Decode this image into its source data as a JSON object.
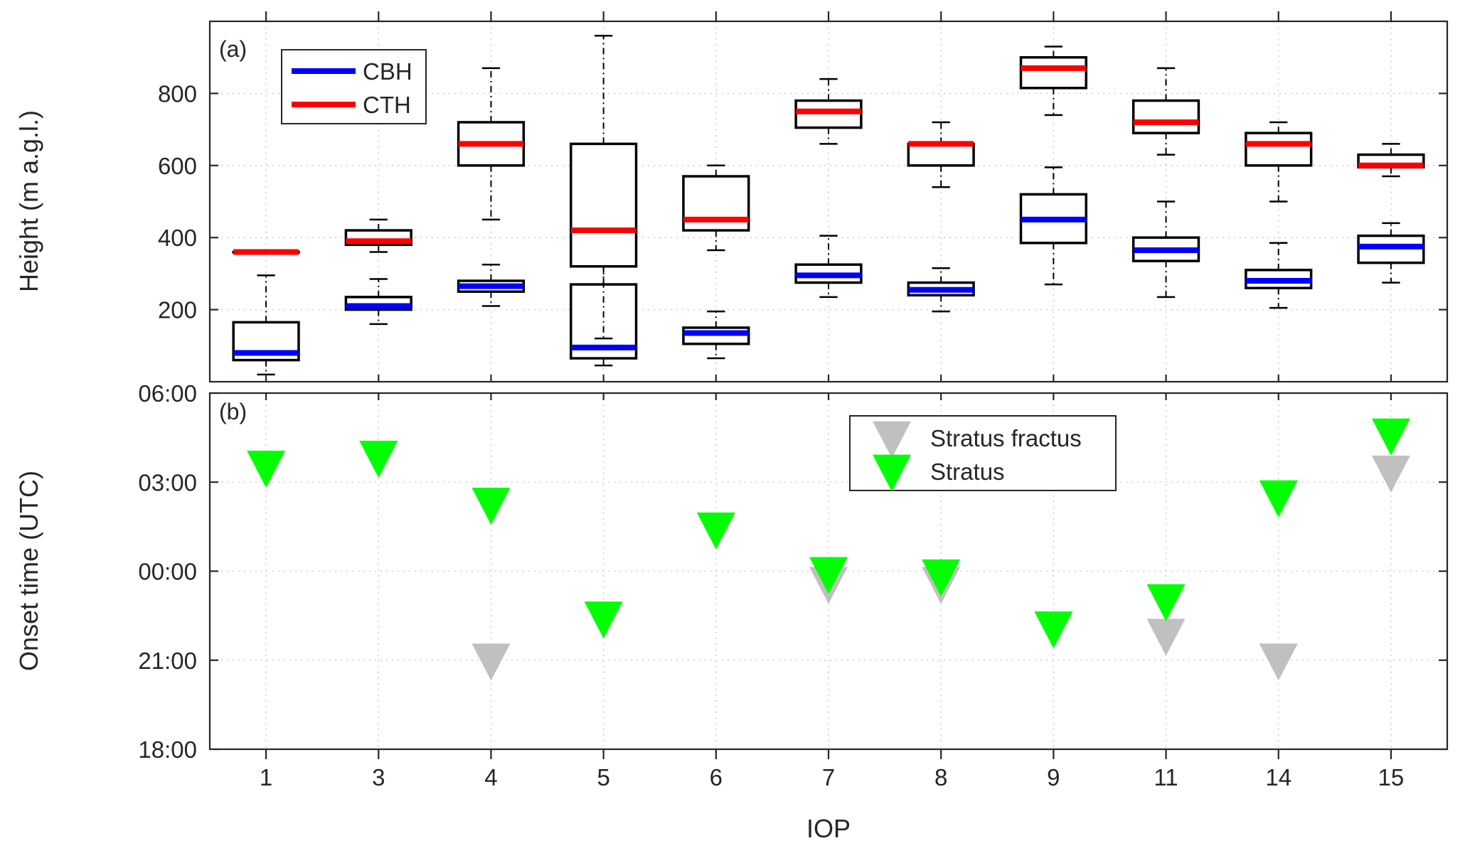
{
  "chart_data": [
    {
      "type": "box",
      "panel_label": "(a)",
      "ylabel": "Height (m a.g.l.)",
      "xlabel": "",
      "categories": [
        "1",
        "3",
        "4",
        "5",
        "6",
        "7",
        "8",
        "9",
        "11",
        "14",
        "15"
      ],
      "ylim": [
        0,
        1000
      ],
      "yticks": [
        200,
        400,
        600,
        800
      ],
      "grid": true,
      "legend": {
        "position": "top-left",
        "entries": [
          "CBH",
          "CTH"
        ]
      },
      "series": [
        {
          "name": "CBH",
          "color": "#0000ff",
          "boxes": [
            {
              "lower_whisker": 20,
              "q1": 60,
              "median": 80,
              "q3": 165,
              "upper_whisker": 295
            },
            {
              "lower_whisker": 160,
              "q1": 200,
              "median": 210,
              "q3": 235,
              "upper_whisker": 285
            },
            {
              "lower_whisker": 210,
              "q1": 250,
              "median": 265,
              "q3": 280,
              "upper_whisker": 325
            },
            {
              "lower_whisker": 45,
              "q1": 65,
              "median": 95,
              "q3": 270,
              "upper_whisker": 550
            },
            {
              "lower_whisker": 65,
              "q1": 105,
              "median": 135,
              "q3": 150,
              "upper_whisker": 195
            },
            {
              "lower_whisker": 235,
              "q1": 275,
              "median": 295,
              "q3": 325,
              "upper_whisker": 405
            },
            {
              "lower_whisker": 195,
              "q1": 240,
              "median": 255,
              "q3": 275,
              "upper_whisker": 315
            },
            {
              "lower_whisker": 270,
              "q1": 385,
              "median": 450,
              "q3": 520,
              "upper_whisker": 595
            },
            {
              "lower_whisker": 235,
              "q1": 335,
              "median": 365,
              "q3": 400,
              "upper_whisker": 500
            },
            {
              "lower_whisker": 205,
              "q1": 260,
              "median": 280,
              "q3": 310,
              "upper_whisker": 385
            },
            {
              "lower_whisker": 275,
              "q1": 330,
              "median": 375,
              "q3": 405,
              "upper_whisker": 440
            }
          ]
        },
        {
          "name": "CTH",
          "color": "#ff0000",
          "boxes": [
            {
              "lower_whisker": 360,
              "q1": 360,
              "median": 360,
              "q3": 360,
              "upper_whisker": 360
            },
            {
              "lower_whisker": 360,
              "q1": 380,
              "median": 390,
              "q3": 420,
              "upper_whisker": 450
            },
            {
              "lower_whisker": 450,
              "q1": 600,
              "median": 660,
              "q3": 720,
              "upper_whisker": 870
            },
            {
              "lower_whisker": 120,
              "q1": 320,
              "median": 420,
              "q3": 660,
              "upper_whisker": 960
            },
            {
              "lower_whisker": 365,
              "q1": 420,
              "median": 450,
              "q3": 570,
              "upper_whisker": 600
            },
            {
              "lower_whisker": 660,
              "q1": 705,
              "median": 750,
              "q3": 780,
              "upper_whisker": 840
            },
            {
              "lower_whisker": 540,
              "q1": 600,
              "median": 660,
              "q3": 660,
              "upper_whisker": 720
            },
            {
              "lower_whisker": 740,
              "q1": 815,
              "median": 870,
              "q3": 900,
              "upper_whisker": 930
            },
            {
              "lower_whisker": 630,
              "q1": 690,
              "median": 720,
              "q3": 780,
              "upper_whisker": 870
            },
            {
              "lower_whisker": 500,
              "q1": 600,
              "median": 660,
              "q3": 690,
              "upper_whisker": 720
            },
            {
              "lower_whisker": 570,
              "q1": 595,
              "median": 600,
              "q3": 630,
              "upper_whisker": 660
            }
          ]
        }
      ]
    },
    {
      "type": "scatter",
      "panel_label": "(b)",
      "ylabel": "Onset time (UTC)",
      "xlabel": "IOP",
      "categories": [
        "1",
        "3",
        "4",
        "5",
        "6",
        "7",
        "8",
        "9",
        "11",
        "14",
        "15"
      ],
      "ylim": [
        "18:00",
        "06:00"
      ],
      "yticks": [
        "18:00",
        "21:00",
        "00:00",
        "03:00",
        "06:00"
      ],
      "grid": true,
      "legend": {
        "position": "top-right",
        "entries": [
          "Stratus fractus",
          "Stratus"
        ]
      },
      "marker": "downward-triangle",
      "series": [
        {
          "name": "Stratus fractus",
          "color": "#c0c0c0",
          "points": [
            {
              "x": "4",
              "y": "21:00"
            },
            {
              "x": "7",
              "y": "23:35"
            },
            {
              "x": "8",
              "y": "23:35"
            },
            {
              "x": "11",
              "y": "21:50"
            },
            {
              "x": "14",
              "y": "21:00"
            },
            {
              "x": "15",
              "y": "03:20"
            }
          ]
        },
        {
          "name": "Stratus",
          "color": "#00ff00",
          "points": [
            {
              "x": "1",
              "y": "03:30"
            },
            {
              "x": "3",
              "y": "03:50"
            },
            {
              "x": "4",
              "y": "02:15"
            },
            {
              "x": "5",
              "y": "22:25"
            },
            {
              "x": "6",
              "y": "01:25"
            },
            {
              "x": "7",
              "y": "23:55"
            },
            {
              "x": "8",
              "y": "23:50"
            },
            {
              "x": "9",
              "y": "22:05"
            },
            {
              "x": "11",
              "y": "23:00"
            },
            {
              "x": "14",
              "y": "02:30"
            },
            {
              "x": "15",
              "y": "04:35"
            }
          ]
        }
      ]
    }
  ]
}
